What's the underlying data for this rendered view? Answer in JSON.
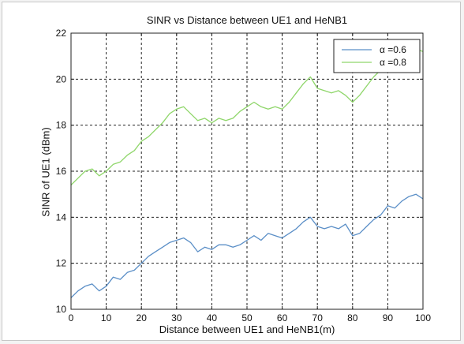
{
  "chart_data": {
    "type": "line",
    "title": "SINR vs Distance between UE1 and HeNB1",
    "xlabel": "Distance between UE1 and HeNB1(m)",
    "ylabel": "SINR of UE1 (dBm)",
    "xlim": [
      0,
      100
    ],
    "ylim": [
      10,
      22
    ],
    "xticks": [
      0,
      10,
      20,
      30,
      40,
      50,
      60,
      70,
      80,
      90,
      100
    ],
    "yticks": [
      10,
      12,
      14,
      16,
      18,
      20,
      22
    ],
    "grid": true,
    "legend_position": "top-right",
    "series": [
      {
        "name": "α =0.6",
        "color": "#5b8fc7",
        "x": [
          0,
          2,
          4,
          6,
          8,
          10,
          12,
          14,
          16,
          18,
          20,
          22,
          24,
          26,
          28,
          30,
          32,
          34,
          36,
          38,
          40,
          42,
          44,
          46,
          48,
          50,
          52,
          54,
          56,
          58,
          60,
          62,
          64,
          66,
          68,
          70,
          72,
          74,
          76,
          78,
          80,
          82,
          84,
          86,
          88,
          90,
          92,
          94,
          96,
          98,
          100
        ],
        "y": [
          10.5,
          10.8,
          11.0,
          11.1,
          10.8,
          11.0,
          11.4,
          11.3,
          11.6,
          11.7,
          12.0,
          12.3,
          12.5,
          12.7,
          12.9,
          13.0,
          13.1,
          12.9,
          12.5,
          12.7,
          12.6,
          12.8,
          12.8,
          12.7,
          12.8,
          13.0,
          13.2,
          13.0,
          13.3,
          13.2,
          13.1,
          13.3,
          13.5,
          13.8,
          14.0,
          13.6,
          13.5,
          13.6,
          13.5,
          13.7,
          13.2,
          13.3,
          13.6,
          13.9,
          14.1,
          14.5,
          14.4,
          14.7,
          14.9,
          15.0,
          14.8
        ]
      },
      {
        "name": "α =0.8",
        "color": "#8fd66a",
        "x": [
          0,
          2,
          4,
          6,
          8,
          10,
          12,
          14,
          16,
          18,
          20,
          22,
          24,
          26,
          28,
          30,
          32,
          34,
          36,
          38,
          40,
          42,
          44,
          46,
          48,
          50,
          52,
          54,
          56,
          58,
          60,
          62,
          64,
          66,
          68,
          70,
          72,
          74,
          76,
          78,
          80,
          82,
          84,
          86,
          88,
          90,
          92,
          94,
          96,
          98,
          100
        ],
        "y": [
          15.4,
          15.7,
          16.0,
          16.1,
          15.8,
          16.0,
          16.3,
          16.4,
          16.7,
          16.9,
          17.3,
          17.5,
          17.8,
          18.1,
          18.5,
          18.7,
          18.8,
          18.5,
          18.2,
          18.3,
          18.1,
          18.3,
          18.2,
          18.3,
          18.6,
          18.8,
          19.0,
          18.8,
          18.7,
          18.8,
          18.7,
          19.0,
          19.4,
          19.8,
          20.1,
          19.6,
          19.5,
          19.4,
          19.5,
          19.3,
          19.0,
          19.3,
          19.7,
          20.1,
          20.4,
          20.6,
          20.8,
          21.0,
          21.1,
          21.3,
          21.2
        ]
      }
    ]
  }
}
